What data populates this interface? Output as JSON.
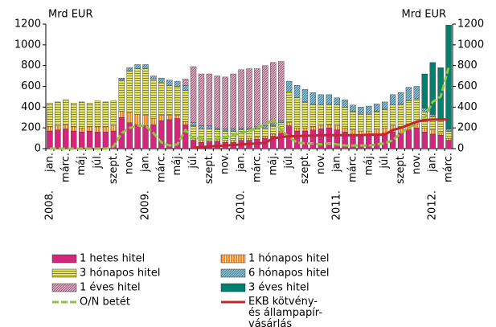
{
  "chart_data": {
    "type": "stacked_bar_line",
    "y_label_left": "Mrd EUR",
    "y_label_right": "Mrd EUR",
    "categories": [
      "jan.",
      null,
      "márc.",
      null,
      "máj.",
      null,
      "júl.",
      null,
      "szept.",
      null,
      "nov.",
      null,
      "jan.",
      null,
      "márc.",
      null,
      "máj.",
      null,
      "júl.",
      null,
      "szept.",
      null,
      "nov.",
      null,
      "jan.",
      null,
      "márc.",
      null,
      "máj.",
      null,
      "júl.",
      null,
      "szept.",
      null,
      "nov.",
      null,
      "jan.",
      null,
      "márc.",
      null,
      "máj.",
      null,
      "júl.",
      null,
      "szept.",
      null,
      "nov.",
      null,
      "jan.",
      null,
      "márc."
    ],
    "year_labels": [
      {
        "index": 0,
        "label": "2008."
      },
      {
        "index": 12,
        "label": "2009."
      },
      {
        "index": 24,
        "label": "2010."
      },
      {
        "index": 36,
        "label": "2011."
      },
      {
        "index": 48,
        "label": "2012."
      }
    ],
    "ylim": [
      0,
      1200
    ],
    "yticks": [
      0,
      200,
      400,
      600,
      800,
      1000,
      1200
    ],
    "y2lim": [
      0,
      1200
    ],
    "y2ticks": [
      0,
      200,
      400,
      600,
      800,
      1000,
      1200
    ],
    "series": [
      {
        "name": "1 hetes hitel",
        "kind": "bar",
        "color": "#d4267c",
        "hatch": "none",
        "values": [
          170,
          180,
          190,
          170,
          160,
          170,
          160,
          160,
          170,
          300,
          250,
          230,
          220,
          230,
          270,
          280,
          290,
          230,
          80,
          60,
          70,
          70,
          60,
          60,
          80,
          80,
          90,
          100,
          120,
          150,
          220,
          170,
          170,
          180,
          190,
          200,
          180,
          160,
          140,
          130,
          130,
          140,
          150,
          160,
          150,
          180,
          200,
          160,
          140,
          130,
          80
        ]
      },
      {
        "name": "1 hónapos hitel",
        "kind": "bar",
        "color": "#f08a1e",
        "hatch": "vertical",
        "values": [
          40,
          40,
          40,
          40,
          40,
          40,
          50,
          50,
          50,
          60,
          100,
          100,
          100,
          60,
          50,
          40,
          30,
          30,
          20,
          20,
          20,
          20,
          20,
          20,
          20,
          20,
          20,
          20,
          20,
          20,
          30,
          30,
          30,
          30,
          30,
          30,
          40,
          40,
          40,
          40,
          40,
          50,
          50,
          60,
          60,
          60,
          40,
          40,
          40,
          20,
          20
        ]
      },
      {
        "name": "3 hónapos hitel",
        "kind": "bar",
        "color": "#e6e65a",
        "hatch": "horizontal",
        "values": [
          230,
          230,
          240,
          230,
          250,
          230,
          250,
          240,
          240,
          300,
          400,
          440,
          450,
          380,
          320,
          290,
          280,
          300,
          120,
          110,
          100,
          90,
          90,
          90,
          80,
          80,
          80,
          80,
          80,
          80,
          300,
          290,
          250,
          220,
          200,
          200,
          200,
          200,
          180,
          170,
          170,
          170,
          180,
          200,
          220,
          220,
          240,
          150,
          130,
          120,
          70
        ]
      },
      {
        "name": "6 hónapos hitel",
        "kind": "bar",
        "color": "#7fcbe8",
        "hatch": "diagonal",
        "values": [
          0,
          0,
          0,
          0,
          0,
          0,
          0,
          0,
          0,
          20,
          30,
          40,
          40,
          30,
          40,
          50,
          50,
          50,
          30,
          30,
          30,
          20,
          20,
          20,
          20,
          20,
          20,
          20,
          20,
          20,
          100,
          120,
          120,
          110,
          100,
          90,
          70,
          70,
          60,
          60,
          70,
          70,
          70,
          100,
          110,
          130,
          120,
          40,
          20,
          20,
          20
        ]
      },
      {
        "name": "1 éves hitel",
        "kind": "bar",
        "color": "#f3a6cc",
        "hatch": "diagonal",
        "values": [
          0,
          0,
          0,
          0,
          0,
          0,
          0,
          0,
          0,
          0,
          0,
          0,
          0,
          0,
          0,
          0,
          0,
          60,
          540,
          500,
          500,
          500,
          500,
          530,
          560,
          570,
          560,
          580,
          590,
          570,
          0,
          0,
          0,
          0,
          0,
          0,
          0,
          0,
          0,
          0,
          0,
          0,
          0,
          0,
          0,
          0,
          0,
          0,
          0,
          0,
          0
        ]
      },
      {
        "name": "3 éves hitel",
        "kind": "bar",
        "color": "#00806e",
        "hatch": "none",
        "values": [
          0,
          0,
          0,
          0,
          0,
          0,
          0,
          0,
          0,
          0,
          0,
          0,
          0,
          0,
          0,
          0,
          0,
          0,
          0,
          0,
          0,
          0,
          0,
          0,
          0,
          0,
          0,
          0,
          0,
          0,
          0,
          0,
          0,
          0,
          0,
          0,
          0,
          0,
          0,
          0,
          0,
          0,
          0,
          0,
          0,
          0,
          0,
          330,
          500,
          490,
          1000
        ]
      },
      {
        "name": "O/N betét",
        "kind": "line",
        "color": "#8cc63f",
        "dashed": true,
        "values": [
          0,
          0,
          0,
          0,
          0,
          0,
          0,
          0,
          20,
          150,
          200,
          220,
          220,
          150,
          60,
          30,
          40,
          180,
          100,
          100,
          80,
          100,
          110,
          130,
          150,
          170,
          200,
          230,
          280,
          180,
          110,
          60,
          50,
          50,
          40,
          50,
          40,
          30,
          30,
          30,
          30,
          40,
          50,
          80,
          150,
          200,
          250,
          300,
          450,
          500,
          780
        ]
      },
      {
        "name": "EKB kötvény- és állampapír-vásárlás",
        "kind": "line",
        "color": "#c1272d",
        "dashed": false,
        "values": [
          null,
          null,
          null,
          null,
          null,
          null,
          null,
          null,
          null,
          null,
          null,
          null,
          null,
          null,
          null,
          null,
          null,
          null,
          10,
          15,
          20,
          25,
          30,
          35,
          40,
          45,
          50,
          55,
          100,
          110,
          120,
          120,
          125,
          125,
          130,
          130,
          130,
          130,
          130,
          130,
          135,
          135,
          135,
          180,
          200,
          230,
          260,
          275,
          280,
          280,
          280
        ]
      }
    ]
  }
}
